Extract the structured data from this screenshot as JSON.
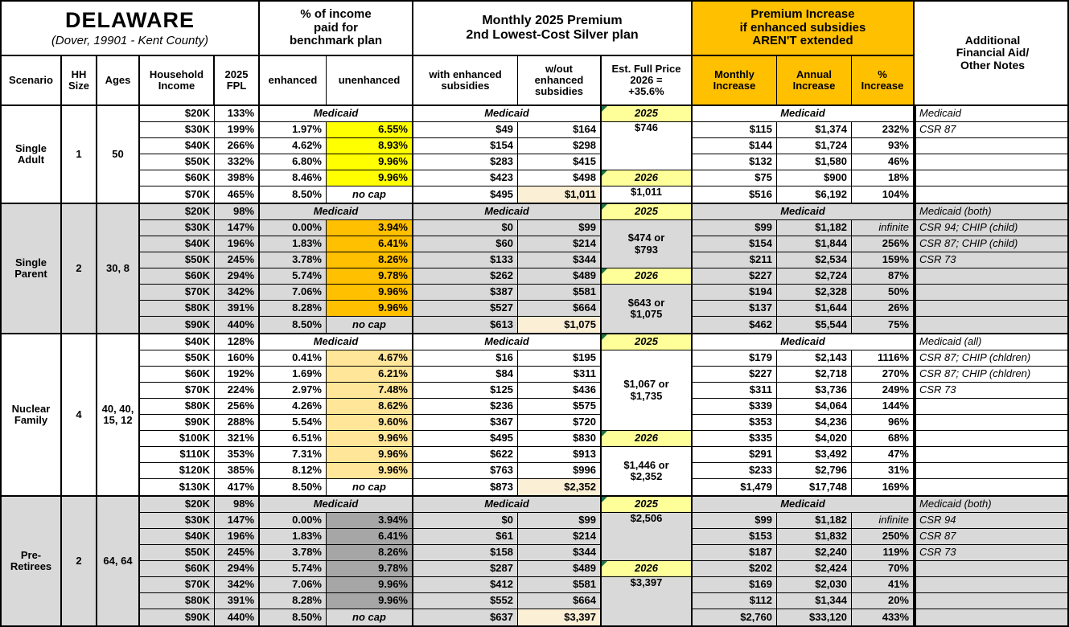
{
  "title": "DELAWARE",
  "subtitle": "(Dover, 19901 - Kent County)",
  "colors": {
    "orange_header": "#FFC000",
    "label_yellow": "#FFFF99",
    "section_gray": "#D9D9D9",
    "white": "#FFFFFF",
    "highlight_cream": "#FBEFD5",
    "triangle_green": "#1E7145",
    "unenhanced_s1": "#FFFF00",
    "unenhanced_s2": "#FFC000",
    "unenhanced_s3": "#FFE699",
    "unenhanced_s4": "#A6A6A6"
  },
  "header": {
    "benchmark_group": "% of income\npaid for\nbenchmark plan",
    "premium_group": "Monthly 2025 Premium\n2nd Lowest-Cost Silver plan",
    "increase_group": "Premium Increase\nif enhanced subsidies\nAREN'T extended",
    "notes_group": "Additional\nFinancial Aid/\nOther Notes",
    "cols": {
      "scenario": "Scenario",
      "hh_size": "HH\nSize",
      "ages": "Ages",
      "income": "Household\nIncome",
      "fpl": "2025\nFPL",
      "enhanced": "enhanced",
      "unenhanced": "unenhanced",
      "with_sub": "with enhanced\nsubsidies",
      "wo_sub": "w/out\nenhanced\nsubsidies",
      "est": "Est. Full Price\n2026 =\n+35.6%",
      "monthly": "Monthly\nIncrease",
      "annual": "Annual\nIncrease",
      "pct": "%\nIncrease"
    }
  },
  "medicaid_label": "Medicaid",
  "sections": [
    {
      "scenario": "Single\nAdult",
      "hh_size": "1",
      "ages": "50",
      "bg": "#FFFFFF",
      "unenhanced_bg": "#FFFF00",
      "rows": [
        {
          "income": "$20K",
          "fpl": "133%",
          "medicaid": true,
          "note": "Medicaid"
        },
        {
          "income": "$30K",
          "fpl": "199%",
          "enh": "1.97%",
          "unenh": "6.55%",
          "with_s": "$49",
          "wo_s": "$164",
          "mon": "$115",
          "ann": "$1,374",
          "pct": "232%",
          "note": "CSR 87"
        },
        {
          "income": "$40K",
          "fpl": "266%",
          "enh": "4.62%",
          "unenh": "8.93%",
          "with_s": "$154",
          "wo_s": "$298",
          "mon": "$144",
          "ann": "$1,724",
          "pct": "93%",
          "note": ""
        },
        {
          "income": "$50K",
          "fpl": "332%",
          "enh": "6.80%",
          "unenh": "9.96%",
          "with_s": "$283",
          "wo_s": "$415",
          "mon": "$132",
          "ann": "$1,580",
          "pct": "46%",
          "note": ""
        },
        {
          "income": "$60K",
          "fpl": "398%",
          "enh": "8.46%",
          "unenh": "9.96%",
          "with_s": "$423",
          "wo_s": "$498",
          "mon": "$75",
          "ann": "$900",
          "pct": "18%",
          "note": ""
        },
        {
          "income": "$70K",
          "fpl": "465%",
          "enh": "8.50%",
          "unenh": "no cap",
          "nocap": true,
          "with_s": "$495",
          "wo_s": "$1,011",
          "wo_hl": true,
          "mon": "$516",
          "ann": "$6,192",
          "pct": "104%",
          "note": ""
        }
      ],
      "est_blocks": [
        {
          "text": "2025",
          "rows": 1,
          "label": true
        },
        {
          "text": "$746",
          "rows": 3,
          "valign": "top"
        },
        {
          "text": "2026",
          "rows": 1,
          "label": true
        },
        {
          "text": "$1,011",
          "rows": 1,
          "valign": "top"
        }
      ]
    },
    {
      "scenario": "Single\nParent",
      "hh_size": "2",
      "ages": "30, 8",
      "bg": "#D9D9D9",
      "unenhanced_bg": "#FFC000",
      "rows": [
        {
          "income": "$20K",
          "fpl": "98%",
          "medicaid": true,
          "note": "Medicaid (both)"
        },
        {
          "income": "$30K",
          "fpl": "147%",
          "enh": "0.00%",
          "unenh": "3.94%",
          "with_s": "$0",
          "wo_s": "$99",
          "mon": "$99",
          "ann": "$1,182",
          "pct": "infinite",
          "note": "CSR 94; CHIP (child)"
        },
        {
          "income": "$40K",
          "fpl": "196%",
          "enh": "1.83%",
          "unenh": "6.41%",
          "with_s": "$60",
          "wo_s": "$214",
          "mon": "$154",
          "ann": "$1,844",
          "pct": "256%",
          "note": "CSR 87; CHIP (child)"
        },
        {
          "income": "$50K",
          "fpl": "245%",
          "enh": "3.78%",
          "unenh": "8.26%",
          "with_s": "$133",
          "wo_s": "$344",
          "mon": "$211",
          "ann": "$2,534",
          "pct": "159%",
          "note": "CSR 73"
        },
        {
          "income": "$60K",
          "fpl": "294%",
          "enh": "5.74%",
          "unenh": "9.78%",
          "with_s": "$262",
          "wo_s": "$489",
          "mon": "$227",
          "ann": "$2,724",
          "pct": "87%",
          "note": ""
        },
        {
          "income": "$70K",
          "fpl": "342%",
          "enh": "7.06%",
          "unenh": "9.96%",
          "with_s": "$387",
          "wo_s": "$581",
          "mon": "$194",
          "ann": "$2,328",
          "pct": "50%",
          "note": ""
        },
        {
          "income": "$80K",
          "fpl": "391%",
          "enh": "8.28%",
          "unenh": "9.96%",
          "with_s": "$527",
          "wo_s": "$664",
          "mon": "$137",
          "ann": "$1,644",
          "pct": "26%",
          "note": ""
        },
        {
          "income": "$90K",
          "fpl": "440%",
          "enh": "8.50%",
          "unenh": "no cap",
          "nocap": true,
          "with_s": "$613",
          "wo_s": "$1,075",
          "wo_hl": true,
          "mon": "$462",
          "ann": "$5,544",
          "pct": "75%",
          "note": ""
        }
      ],
      "est_blocks": [
        {
          "text": "2025",
          "rows": 1,
          "label": true
        },
        {
          "text": "$474 or\n$793",
          "rows": 3,
          "valign": "center"
        },
        {
          "text": "2026",
          "rows": 1,
          "label": true
        },
        {
          "text": "$643 or\n$1,075",
          "rows": 3,
          "valign": "center"
        }
      ]
    },
    {
      "scenario": "Nuclear\nFamily",
      "hh_size": "4",
      "ages": "40, 40,\n15, 12",
      "bg": "#FFFFFF",
      "unenhanced_bg": "#FFE699",
      "rows": [
        {
          "income": "$40K",
          "fpl": "128%",
          "medicaid": true,
          "note": "Medicaid (all)"
        },
        {
          "income": "$50K",
          "fpl": "160%",
          "enh": "0.41%",
          "unenh": "4.67%",
          "with_s": "$16",
          "wo_s": "$195",
          "mon": "$179",
          "ann": "$2,143",
          "pct": "1116%",
          "note": "CSR 87; CHIP (chldren)"
        },
        {
          "income": "$60K",
          "fpl": "192%",
          "enh": "1.69%",
          "unenh": "6.21%",
          "with_s": "$84",
          "wo_s": "$311",
          "mon": "$227",
          "ann": "$2,718",
          "pct": "270%",
          "note": "CSR 87; CHIP (chldren)"
        },
        {
          "income": "$70K",
          "fpl": "224%",
          "enh": "2.97%",
          "unenh": "7.48%",
          "with_s": "$125",
          "wo_s": "$436",
          "mon": "$311",
          "ann": "$3,736",
          "pct": "249%",
          "note": "CSR 73"
        },
        {
          "income": "$80K",
          "fpl": "256%",
          "enh": "4.26%",
          "unenh": "8.62%",
          "with_s": "$236",
          "wo_s": "$575",
          "mon": "$339",
          "ann": "$4,064",
          "pct": "144%",
          "note": ""
        },
        {
          "income": "$90K",
          "fpl": "288%",
          "enh": "5.54%",
          "unenh": "9.60%",
          "with_s": "$367",
          "wo_s": "$720",
          "mon": "$353",
          "ann": "$4,236",
          "pct": "96%",
          "note": ""
        },
        {
          "income": "$100K",
          "fpl": "321%",
          "enh": "6.51%",
          "unenh": "9.96%",
          "with_s": "$495",
          "wo_s": "$830",
          "mon": "$335",
          "ann": "$4,020",
          "pct": "68%",
          "note": ""
        },
        {
          "income": "$110K",
          "fpl": "353%",
          "enh": "7.31%",
          "unenh": "9.96%",
          "with_s": "$622",
          "wo_s": "$913",
          "mon": "$291",
          "ann": "$3,492",
          "pct": "47%",
          "note": ""
        },
        {
          "income": "$120K",
          "fpl": "385%",
          "enh": "8.12%",
          "unenh": "9.96%",
          "with_s": "$763",
          "wo_s": "$996",
          "mon": "$233",
          "ann": "$2,796",
          "pct": "31%",
          "note": ""
        },
        {
          "income": "$130K",
          "fpl": "417%",
          "enh": "8.50%",
          "unenh": "no cap",
          "nocap": true,
          "with_s": "$873",
          "wo_s": "$2,352",
          "wo_hl": true,
          "mon": "$1,479",
          "ann": "$17,748",
          "pct": "169%",
          "note": ""
        }
      ],
      "est_blocks": [
        {
          "text": "2025",
          "rows": 1,
          "label": true
        },
        {
          "text": "$1,067 or\n$1,735",
          "rows": 5,
          "valign": "center"
        },
        {
          "text": "2026",
          "rows": 1,
          "label": true
        },
        {
          "text": "$1,446 or\n$2,352",
          "rows": 3,
          "valign": "center"
        }
      ]
    },
    {
      "scenario": "Pre-\nRetirees",
      "hh_size": "2",
      "ages": "64, 64",
      "bg": "#D9D9D9",
      "unenhanced_bg": "#A6A6A6",
      "rows": [
        {
          "income": "$20K",
          "fpl": "98%",
          "medicaid": true,
          "note": "Medicaid (both)"
        },
        {
          "income": "$30K",
          "fpl": "147%",
          "enh": "0.00%",
          "unenh": "3.94%",
          "with_s": "$0",
          "wo_s": "$99",
          "mon": "$99",
          "ann": "$1,182",
          "pct": "infinite",
          "note": "CSR 94"
        },
        {
          "income": "$40K",
          "fpl": "196%",
          "enh": "1.83%",
          "unenh": "6.41%",
          "with_s": "$61",
          "wo_s": "$214",
          "mon": "$153",
          "ann": "$1,832",
          "pct": "250%",
          "note": "CSR 87"
        },
        {
          "income": "$50K",
          "fpl": "245%",
          "enh": "3.78%",
          "unenh": "8.26%",
          "with_s": "$158",
          "wo_s": "$344",
          "mon": "$187",
          "ann": "$2,240",
          "pct": "119%",
          "note": "CSR 73"
        },
        {
          "income": "$60K",
          "fpl": "294%",
          "enh": "5.74%",
          "unenh": "9.78%",
          "with_s": "$287",
          "wo_s": "$489",
          "mon": "$202",
          "ann": "$2,424",
          "pct": "70%",
          "note": ""
        },
        {
          "income": "$70K",
          "fpl": "342%",
          "enh": "7.06%",
          "unenh": "9.96%",
          "with_s": "$412",
          "wo_s": "$581",
          "mon": "$169",
          "ann": "$2,030",
          "pct": "41%",
          "note": ""
        },
        {
          "income": "$80K",
          "fpl": "391%",
          "enh": "8.28%",
          "unenh": "9.96%",
          "with_s": "$552",
          "wo_s": "$664",
          "mon": "$112",
          "ann": "$1,344",
          "pct": "20%",
          "note": ""
        },
        {
          "income": "$90K",
          "fpl": "440%",
          "enh": "8.50%",
          "unenh": "no cap",
          "nocap": true,
          "with_s": "$637",
          "wo_s": "$3,397",
          "wo_hl": true,
          "mon": "$2,760",
          "ann": "$33,120",
          "pct": "433%",
          "note": ""
        }
      ],
      "est_blocks": [
        {
          "text": "2025",
          "rows": 1,
          "label": true
        },
        {
          "text": "$2,506",
          "rows": 3,
          "valign": "top"
        },
        {
          "text": "2026",
          "rows": 1,
          "label": true
        },
        {
          "text": "$3,397",
          "rows": 3,
          "valign": "top"
        }
      ]
    }
  ]
}
